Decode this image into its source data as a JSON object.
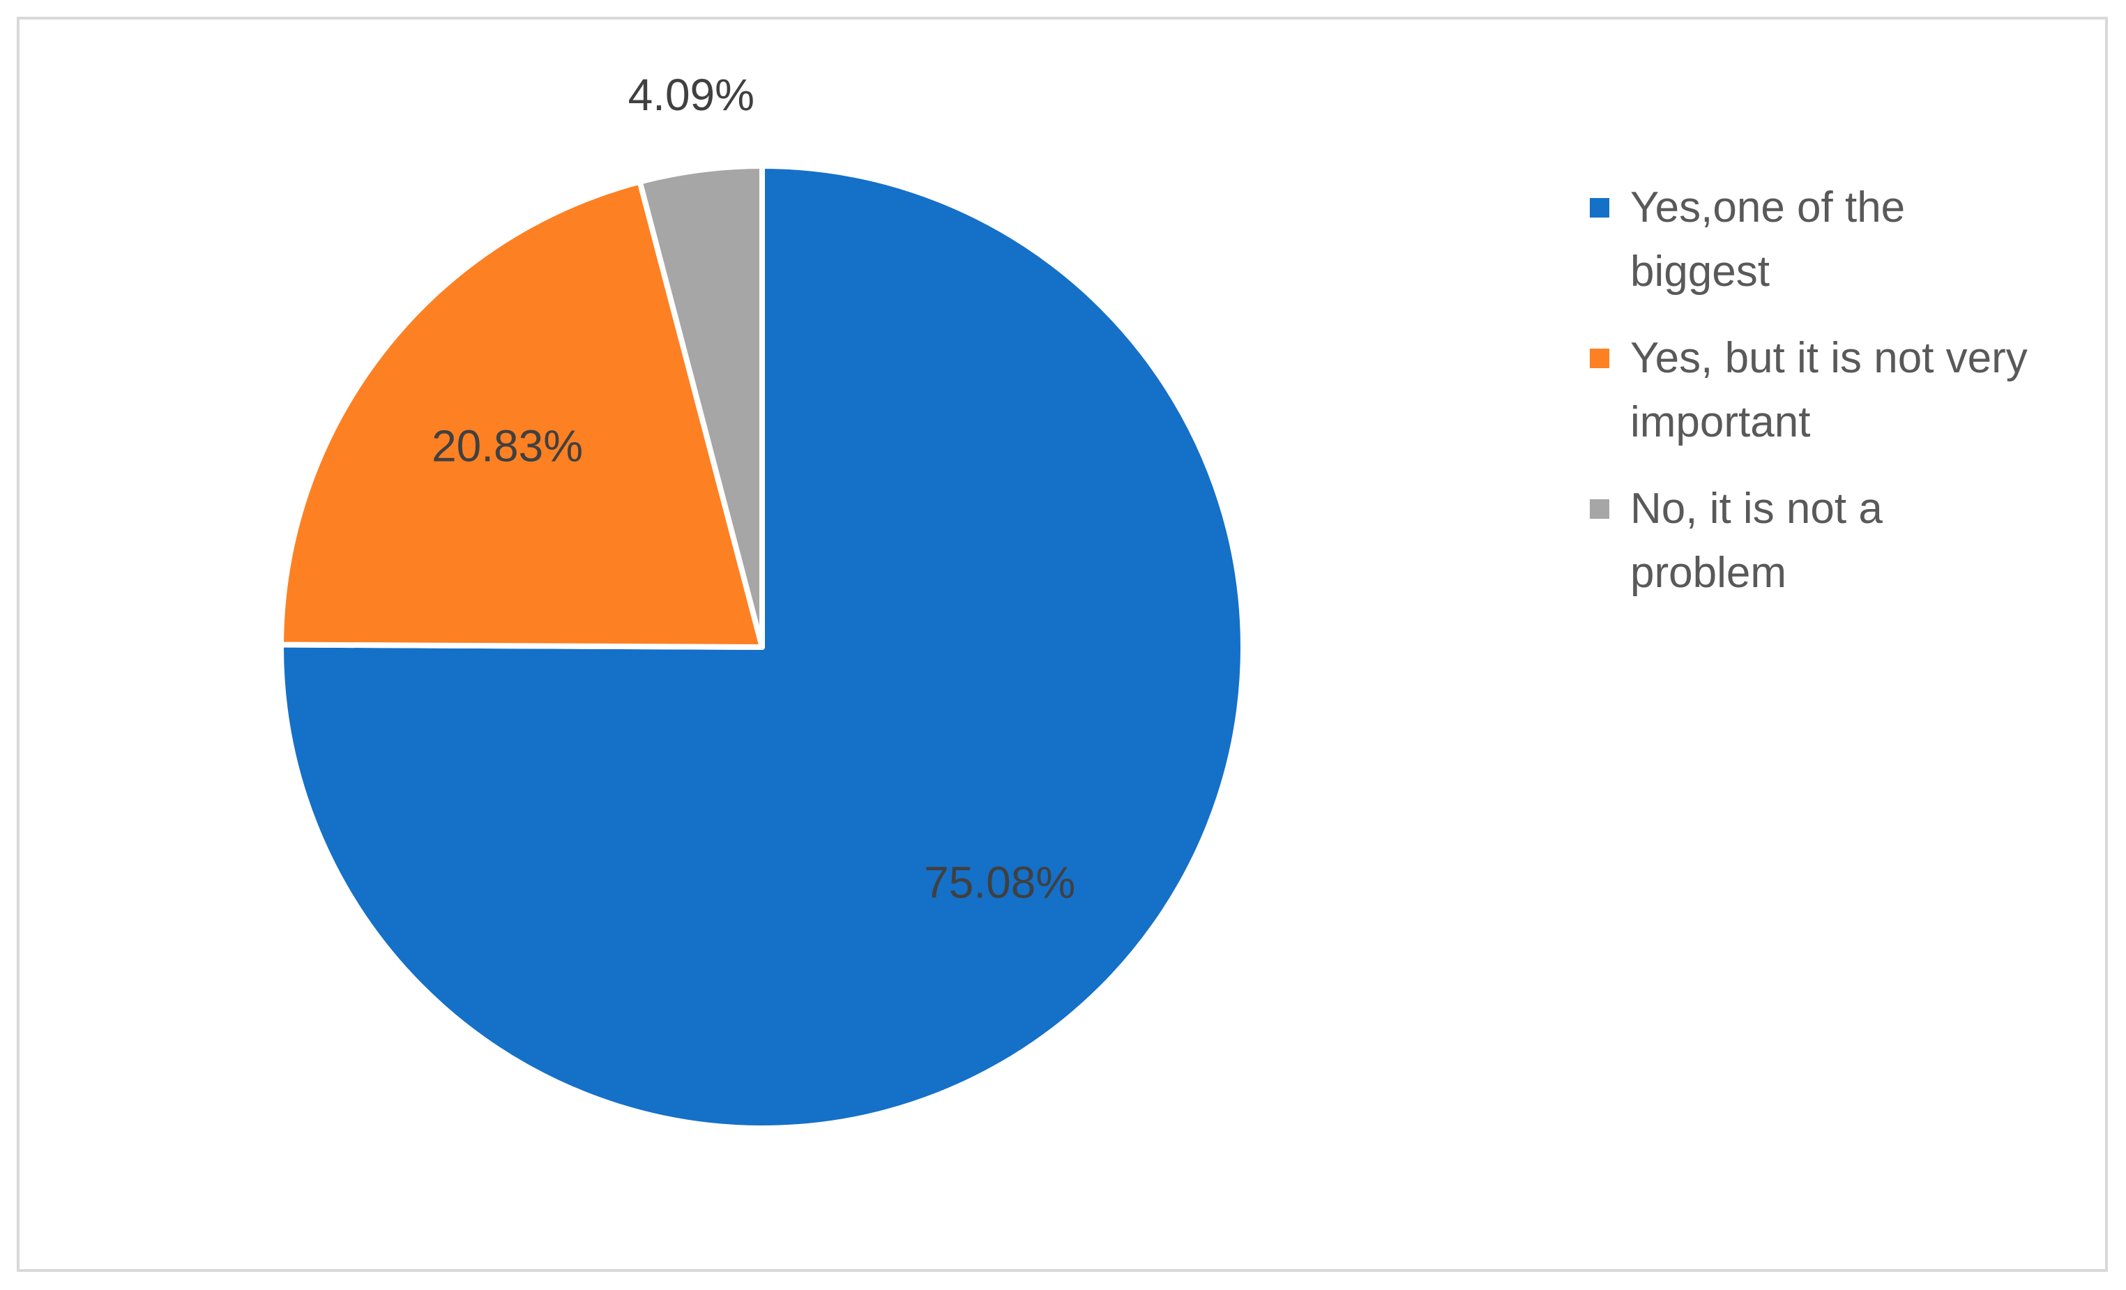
{
  "chart_data": {
    "type": "pie",
    "slices": [
      {
        "name": "Yes,one of the biggest",
        "value": 75.08,
        "label": "75.08%",
        "color": "#1570c8"
      },
      {
        "name": "Yes, but it is not very important",
        "value": 20.83,
        "label": "20.83%",
        "color": "#fd8023"
      },
      {
        "name": "No, it is not a problem",
        "value": 4.09,
        "label": "4.09%",
        "color": "#a6a6a6"
      }
    ],
    "legend": {
      "position": "right"
    }
  }
}
